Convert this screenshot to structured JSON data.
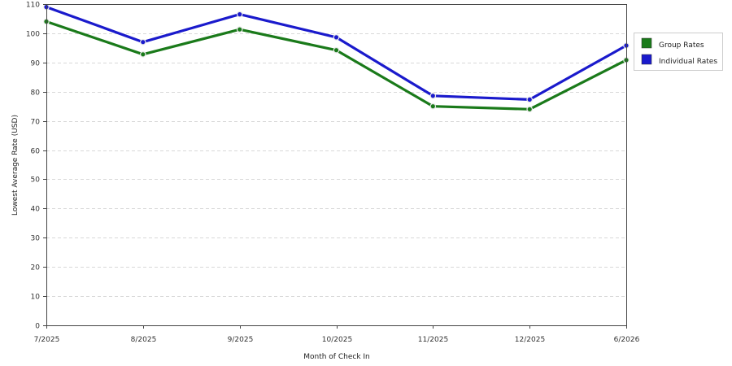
{
  "chart_data": {
    "type": "line",
    "title": "",
    "xlabel": "Month of Check In",
    "ylabel": "Lowest Average Rate (USD)",
    "categories": [
      "7/2025",
      "8/2025",
      "9/2025",
      "10/2025",
      "11/2025",
      "12/2025",
      "6/2026"
    ],
    "ylim": [
      0,
      110
    ],
    "yticks": [
      0,
      10,
      20,
      30,
      40,
      50,
      60,
      70,
      80,
      90,
      100,
      110
    ],
    "grid": true,
    "legend_position": "right",
    "series": [
      {
        "name": "Group Rates",
        "color": "#1a7a1a",
        "values": [
          104,
          92.8,
          101.3,
          94.2,
          75,
          74,
          90.8
        ]
      },
      {
        "name": "Individual Rates",
        "color": "#1a1acc",
        "values": [
          109,
          97,
          106.5,
          98.6,
          78.6,
          77.3,
          95.8
        ]
      }
    ]
  }
}
